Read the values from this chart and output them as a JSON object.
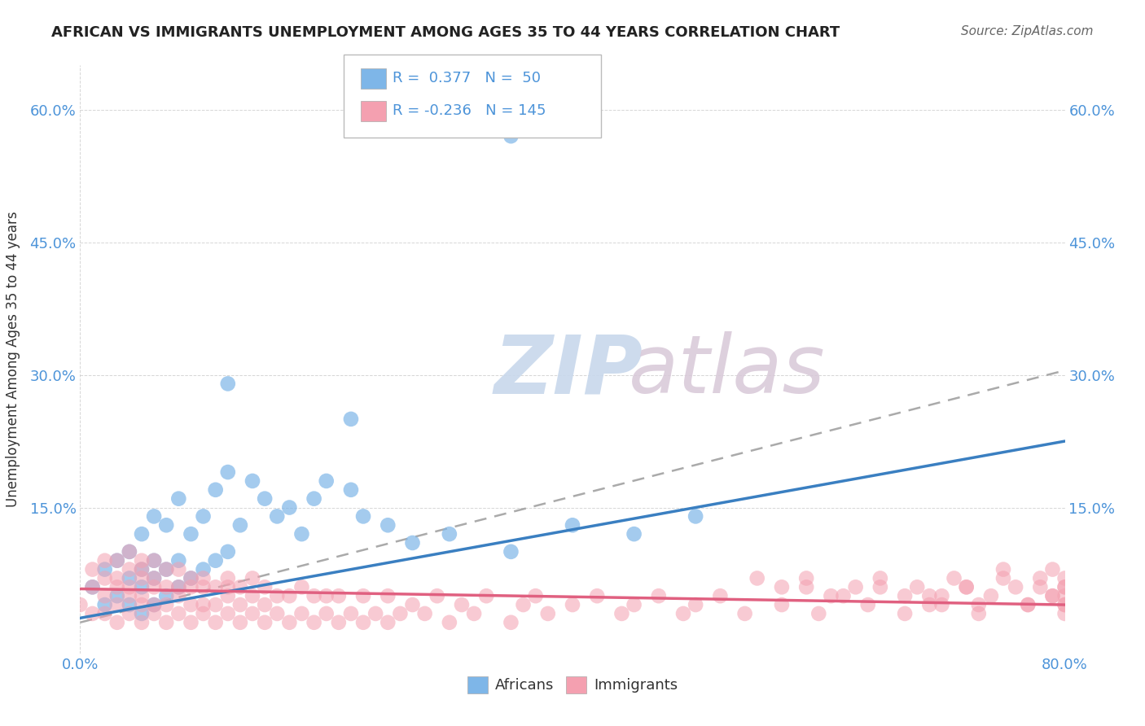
{
  "title": "AFRICAN VS IMMIGRANTS UNEMPLOYMENT AMONG AGES 35 TO 44 YEARS CORRELATION CHART",
  "source": "Source: ZipAtlas.com",
  "ylabel": "Unemployment Among Ages 35 to 44 years",
  "xlim": [
    0.0,
    0.8
  ],
  "ylim": [
    -0.015,
    0.65
  ],
  "y_ticks": [
    0.15,
    0.3,
    0.45,
    0.6
  ],
  "africans_R": 0.377,
  "africans_N": 50,
  "immigrants_R": -0.236,
  "immigrants_N": 145,
  "africans_color": "#7EB6E8",
  "immigrants_color": "#F4A0B0",
  "africans_line_color": "#3A7FC1",
  "immigrants_line_color": "#E06080",
  "dashed_line_color": "#AAAAAA",
  "background_color": "#FFFFFF",
  "tick_color": "#4D94D9",
  "africans_x": [
    0.01,
    0.02,
    0.02,
    0.03,
    0.03,
    0.04,
    0.04,
    0.04,
    0.05,
    0.05,
    0.05,
    0.05,
    0.06,
    0.06,
    0.06,
    0.06,
    0.07,
    0.07,
    0.07,
    0.08,
    0.08,
    0.08,
    0.09,
    0.09,
    0.1,
    0.1,
    0.11,
    0.11,
    0.12,
    0.12,
    0.13,
    0.14,
    0.15,
    0.16,
    0.17,
    0.18,
    0.19,
    0.2,
    0.22,
    0.23,
    0.25,
    0.27,
    0.3,
    0.35,
    0.4,
    0.45,
    0.5,
    0.12,
    0.22,
    0.35
  ],
  "africans_y": [
    0.06,
    0.04,
    0.08,
    0.05,
    0.09,
    0.04,
    0.07,
    0.1,
    0.03,
    0.06,
    0.08,
    0.12,
    0.04,
    0.07,
    0.09,
    0.14,
    0.05,
    0.08,
    0.13,
    0.06,
    0.09,
    0.16,
    0.07,
    0.12,
    0.08,
    0.14,
    0.09,
    0.17,
    0.1,
    0.19,
    0.13,
    0.18,
    0.16,
    0.14,
    0.15,
    0.12,
    0.16,
    0.18,
    0.17,
    0.14,
    0.13,
    0.11,
    0.12,
    0.1,
    0.13,
    0.12,
    0.14,
    0.29,
    0.25,
    0.57
  ],
  "africans_trend_x0": 0.0,
  "africans_trend_y0": 0.025,
  "africans_trend_x1": 0.8,
  "africans_trend_y1": 0.225,
  "immigrants_trend_x0": 0.0,
  "immigrants_trend_y0": 0.058,
  "immigrants_trend_x1": 0.8,
  "immigrants_trend_y1": 0.04,
  "dashed_trend_x0": 0.0,
  "dashed_trend_y0": 0.02,
  "dashed_trend_x1": 0.8,
  "dashed_trend_y1": 0.305,
  "immigrants_x_dense": [
    0.0,
    0.01,
    0.01,
    0.01,
    0.02,
    0.02,
    0.02,
    0.02,
    0.03,
    0.03,
    0.03,
    0.03,
    0.03,
    0.04,
    0.04,
    0.04,
    0.04,
    0.04,
    0.05,
    0.05,
    0.05,
    0.05,
    0.05,
    0.05,
    0.06,
    0.06,
    0.06,
    0.06,
    0.06,
    0.07,
    0.07,
    0.07,
    0.07,
    0.08,
    0.08,
    0.08,
    0.08,
    0.09,
    0.09,
    0.09,
    0.09,
    0.1,
    0.1,
    0.1,
    0.1,
    0.11,
    0.11,
    0.11,
    0.12,
    0.12,
    0.12,
    0.12,
    0.13,
    0.13,
    0.13,
    0.14,
    0.14,
    0.14,
    0.15,
    0.15,
    0.15,
    0.16,
    0.16,
    0.17,
    0.17,
    0.18,
    0.18,
    0.19,
    0.19,
    0.2,
    0.2,
    0.21,
    0.21,
    0.22,
    0.23,
    0.23,
    0.24,
    0.25,
    0.25,
    0.26,
    0.27,
    0.28,
    0.29,
    0.3,
    0.31,
    0.32,
    0.33,
    0.35,
    0.36,
    0.37,
    0.38,
    0.4,
    0.42,
    0.44,
    0.45,
    0.47,
    0.49,
    0.5,
    0.52,
    0.54,
    0.55,
    0.57,
    0.59,
    0.6,
    0.62,
    0.64,
    0.65,
    0.67,
    0.69,
    0.7,
    0.72,
    0.73,
    0.75,
    0.77,
    0.78,
    0.79,
    0.79,
    0.8,
    0.8,
    0.8,
    0.8,
    0.8,
    0.8,
    0.8,
    0.79,
    0.78,
    0.77,
    0.76,
    0.75,
    0.74,
    0.73,
    0.72,
    0.71,
    0.7,
    0.69,
    0.68,
    0.67,
    0.65,
    0.63,
    0.61,
    0.59,
    0.57
  ],
  "immigrants_y_dense": [
    0.04,
    0.03,
    0.06,
    0.08,
    0.03,
    0.05,
    0.07,
    0.09,
    0.02,
    0.04,
    0.06,
    0.07,
    0.09,
    0.03,
    0.05,
    0.06,
    0.08,
    0.1,
    0.02,
    0.04,
    0.05,
    0.07,
    0.08,
    0.09,
    0.03,
    0.04,
    0.06,
    0.07,
    0.09,
    0.02,
    0.04,
    0.06,
    0.08,
    0.03,
    0.05,
    0.06,
    0.08,
    0.02,
    0.04,
    0.06,
    0.07,
    0.03,
    0.04,
    0.06,
    0.07,
    0.02,
    0.04,
    0.06,
    0.03,
    0.05,
    0.06,
    0.07,
    0.02,
    0.04,
    0.06,
    0.03,
    0.05,
    0.07,
    0.02,
    0.04,
    0.06,
    0.03,
    0.05,
    0.02,
    0.05,
    0.03,
    0.06,
    0.02,
    0.05,
    0.03,
    0.05,
    0.02,
    0.05,
    0.03,
    0.02,
    0.05,
    0.03,
    0.02,
    0.05,
    0.03,
    0.04,
    0.03,
    0.05,
    0.02,
    0.04,
    0.03,
    0.05,
    0.02,
    0.04,
    0.05,
    0.03,
    0.04,
    0.05,
    0.03,
    0.04,
    0.05,
    0.03,
    0.04,
    0.05,
    0.03,
    0.07,
    0.04,
    0.06,
    0.03,
    0.05,
    0.04,
    0.06,
    0.03,
    0.05,
    0.04,
    0.06,
    0.03,
    0.07,
    0.04,
    0.06,
    0.08,
    0.05,
    0.04,
    0.06,
    0.03,
    0.07,
    0.05,
    0.06,
    0.04,
    0.05,
    0.07,
    0.04,
    0.06,
    0.08,
    0.05,
    0.04,
    0.06,
    0.07,
    0.05,
    0.04,
    0.06,
    0.05,
    0.07,
    0.06,
    0.05,
    0.07,
    0.06
  ]
}
